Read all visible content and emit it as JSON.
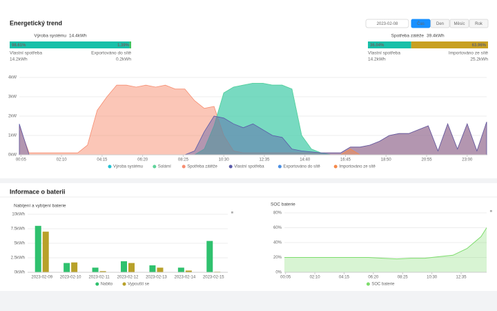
{
  "header": {
    "title": "Energetický trend",
    "date": "2023-02-08",
    "tabs": [
      "Čas",
      "Den",
      "Měsíc",
      "Rok"
    ]
  },
  "left_stats": {
    "total_label": "Výroba systému",
    "total_value": "14.4kWh",
    "split": [
      {
        "value": 98.61,
        "label": "98.61%"
      },
      {
        "value": 1.39,
        "label": "1.39%"
      }
    ],
    "items": [
      {
        "label": "Vlastní spotřeba",
        "value": "14.2kWh"
      },
      {
        "label": "Exportováno do sítě",
        "value": "0.2kWh"
      }
    ]
  },
  "right_stats": {
    "total_label": "Spotřeba zátěže",
    "total_value": "39.4kWh",
    "split": [
      {
        "value": 36.04,
        "label": "36.04%"
      },
      {
        "value": 63.96,
        "label": "63.96%"
      }
    ],
    "items": [
      {
        "label": "Vlastní spotřeba",
        "value": "14.2kWh"
      },
      {
        "label": "Importováno ze sítě",
        "value": "25.2kWh"
      }
    ]
  },
  "battery": {
    "title": "Informace o baterii"
  },
  "chart_data": [
    {
      "type": "area",
      "x": [
        0,
        0.5,
        1,
        1.5,
        2,
        2.5,
        3,
        3.5,
        4,
        4.5,
        5,
        5.5,
        6,
        6.5,
        7,
        7.5,
        8,
        8.5,
        9,
        9.5,
        10,
        10.5,
        11,
        11.5,
        12,
        12.5,
        13,
        13.5,
        14,
        14.5,
        15,
        15.5,
        16,
        16.5,
        17,
        17.5,
        18,
        18.5,
        19,
        19.5,
        20,
        20.5,
        21,
        21.5,
        22,
        22.5,
        23,
        23.5,
        24
      ],
      "xlim": [
        0,
        24
      ],
      "xticks": [
        {
          "value": 0.083,
          "label": "00:05"
        },
        {
          "value": 2.167,
          "label": "02:10"
        },
        {
          "value": 4.25,
          "label": "04:15"
        },
        {
          "value": 6.333,
          "label": "06:20"
        },
        {
          "value": 8.417,
          "label": "08:25"
        },
        {
          "value": 10.5,
          "label": "10:30"
        },
        {
          "value": 12.583,
          "label": "12:35"
        },
        {
          "value": 14.667,
          "label": "14:40"
        },
        {
          "value": 16.75,
          "label": "16:45"
        },
        {
          "value": 18.833,
          "label": "18:50"
        },
        {
          "value": 20.917,
          "label": "20:55"
        },
        {
          "value": 23,
          "label": "23:00"
        }
      ],
      "ylim": [
        0,
        4
      ],
      "yticks": [
        {
          "value": 0,
          "label": "0kW"
        },
        {
          "value": 1,
          "label": "1kW"
        },
        {
          "value": 2,
          "label": "2kW"
        },
        {
          "value": 3,
          "label": "3kW"
        },
        {
          "value": 4,
          "label": "4kW"
        }
      ],
      "grid": true,
      "series": [
        {
          "name": "Výroba systému",
          "color": "#22c1d3",
          "values": [
            0,
            0,
            0,
            0,
            0,
            0,
            0,
            0,
            0,
            0,
            0,
            0,
            0,
            0,
            0,
            0,
            0,
            0,
            0,
            0.3,
            1.5,
            3.2,
            3.5,
            3.6,
            3.7,
            3.7,
            3.6,
            3.6,
            3.4,
            1.0,
            0.3,
            0.1,
            0,
            0,
            0,
            0,
            0,
            0,
            0,
            0,
            0,
            0,
            0,
            0,
            0,
            0,
            0,
            0,
            0
          ]
        },
        {
          "name": "Solární",
          "color": "#5fd39a",
          "values": [
            0,
            0,
            0,
            0,
            0,
            0,
            0,
            0,
            0,
            0,
            0,
            0,
            0,
            0,
            0,
            0,
            0,
            0,
            0,
            0.3,
            1.5,
            3.2,
            3.5,
            3.6,
            3.7,
            3.7,
            3.6,
            3.6,
            3.4,
            1.0,
            0.3,
            0.1,
            0,
            0,
            0,
            0,
            0,
            0,
            0,
            0,
            0,
            0,
            0,
            0,
            0,
            0,
            0,
            0,
            0
          ]
        },
        {
          "name": "Spotřeba zátěže",
          "color": "#f78d70",
          "values": [
            1.5,
            0.1,
            0.1,
            0.1,
            0.1,
            0.1,
            0.1,
            0.5,
            2.3,
            3.0,
            3.6,
            3.6,
            3.5,
            3.6,
            3.5,
            3.6,
            3.4,
            3.4,
            2.8,
            2.4,
            2.5,
            1.0,
            0.2,
            0.1,
            0.1,
            0.1,
            0.1,
            0.1,
            0.1,
            0.1,
            0.1,
            0.1,
            0.1,
            0.1,
            0.4,
            0.4,
            0.5,
            0.7,
            1.0,
            1.1,
            1.1,
            1.3,
            1.5,
            0.2,
            1.6,
            0.3,
            1.6,
            0.2,
            1.7
          ]
        },
        {
          "name": "Vlastní spotřeba",
          "color": "#5a5aa8",
          "values": [
            1.6,
            0,
            0,
            0,
            0,
            0,
            0,
            0,
            0,
            0,
            0,
            0,
            0,
            0,
            0,
            0,
            0,
            0,
            0.2,
            1.2,
            2.0,
            1.9,
            1.6,
            1.4,
            1.6,
            1.3,
            1.0,
            0.9,
            0.3,
            0.2,
            0.15,
            0.1,
            0.1,
            0.1,
            0.4,
            0.4,
            0.5,
            0.7,
            1.0,
            1.1,
            1.1,
            1.3,
            1.5,
            0.2,
            1.6,
            0.3,
            1.6,
            0.2,
            1.7
          ]
        },
        {
          "name": "Exportováno do sítě",
          "color": "#4a8fe3",
          "values": [
            0,
            0,
            0,
            0,
            0,
            0,
            0,
            0,
            0,
            0,
            0,
            0,
            0,
            0,
            0,
            0,
            0,
            0,
            0,
            0,
            0,
            0,
            0,
            0,
            0,
            0,
            0,
            0,
            0,
            0,
            0,
            0,
            0,
            0,
            0,
            0,
            0,
            0,
            0,
            0,
            0,
            0,
            0,
            0,
            0,
            0,
            0,
            0,
            0
          ]
        },
        {
          "name": "Importováno ze sítě",
          "color": "#f5894a",
          "values": [
            0,
            0,
            0,
            0,
            0,
            0,
            0,
            0,
            0,
            0,
            0,
            0,
            0,
            0,
            0,
            0,
            0,
            0,
            0,
            0,
            0,
            0,
            0,
            0,
            0,
            0,
            0,
            0,
            0,
            0,
            0,
            0,
            0,
            0,
            0.3,
            0,
            0,
            0,
            0,
            0,
            0,
            0,
            0,
            0,
            0,
            0,
            0,
            0,
            0
          ]
        }
      ]
    },
    {
      "type": "bar",
      "title": "Nabíjení a vybíjení baterie",
      "categories": [
        "2023-02-09",
        "2023-02-10",
        "2023-02-11",
        "2023-02-12",
        "2023-02-13",
        "2023-02-14",
        "2023-02-15"
      ],
      "ylim": [
        0,
        10
      ],
      "yticks": [
        {
          "value": 0,
          "label": "0kWh"
        },
        {
          "value": 2.5,
          "label": "2.5kWh"
        },
        {
          "value": 5,
          "label": "5kWh"
        },
        {
          "value": 7.5,
          "label": "7.5kWh"
        },
        {
          "value": 10,
          "label": "10kWh"
        }
      ],
      "grid": true,
      "series": [
        {
          "name": "Nabito",
          "color": "#2fc16e",
          "values": [
            8.0,
            1.6,
            0.8,
            1.9,
            1.2,
            0.8,
            5.4
          ]
        },
        {
          "name": "Vypouští se",
          "color": "#b8a12a",
          "values": [
            7.0,
            1.7,
            0.2,
            1.6,
            0.8,
            0.3,
            0.1
          ]
        }
      ]
    },
    {
      "type": "line",
      "title": "SOC baterie",
      "x": [
        0,
        1,
        2,
        3,
        4,
        5,
        6,
        7,
        8,
        9,
        10,
        11,
        12,
        13,
        14,
        14.4
      ],
      "xlim": [
        0,
        14.4
      ],
      "xticks": [
        {
          "value": 0.083,
          "label": "00:05"
        },
        {
          "value": 2.167,
          "label": "02:10"
        },
        {
          "value": 4.25,
          "label": "04:15"
        },
        {
          "value": 6.333,
          "label": "06:20"
        },
        {
          "value": 8.417,
          "label": "08:25"
        },
        {
          "value": 10.5,
          "label": "10:30"
        },
        {
          "value": 12.583,
          "label": "12:35"
        }
      ],
      "ylim": [
        0,
        80
      ],
      "yticks": [
        {
          "value": 0,
          "label": "0%"
        },
        {
          "value": 20,
          "label": "20%"
        },
        {
          "value": 40,
          "label": "40%"
        },
        {
          "value": 60,
          "label": "60%"
        },
        {
          "value": 80,
          "label": "80%"
        }
      ],
      "grid": true,
      "series": [
        {
          "name": "SOC baterie",
          "color": "#7ddc6c",
          "values": [
            20,
            20,
            20,
            20,
            20,
            20,
            20,
            19,
            18,
            19,
            19,
            21,
            23,
            32,
            48,
            60
          ]
        }
      ]
    }
  ]
}
